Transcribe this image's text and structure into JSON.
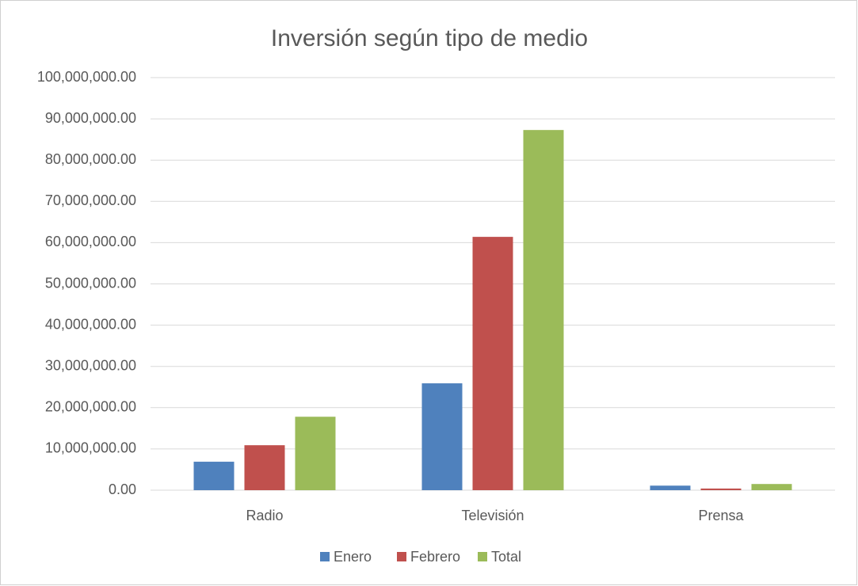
{
  "chart_data": {
    "type": "bar",
    "title": "Inversión según tipo de medio",
    "categories": [
      "Radio",
      "Televisión",
      "Prensa"
    ],
    "series": [
      {
        "name": "Enero",
        "color": "#4f81bd",
        "values": [
          6900000,
          25900000,
          1100000
        ]
      },
      {
        "name": "Febrero",
        "color": "#c0504d",
        "values": [
          10900000,
          61400000,
          400000
        ]
      },
      {
        "name": "Total",
        "color": "#9bbb59",
        "values": [
          17800000,
          87300000,
          1500000
        ]
      }
    ],
    "ylim": [
      0,
      100000000
    ],
    "yticks": [
      {
        "value": 0,
        "label": "0.00"
      },
      {
        "value": 10000000,
        "label": "10,000,000.00"
      },
      {
        "value": 20000000,
        "label": "20,000,000.00"
      },
      {
        "value": 30000000,
        "label": "30,000,000.00"
      },
      {
        "value": 40000000,
        "label": "40,000,000.00"
      },
      {
        "value": 50000000,
        "label": "50,000,000.00"
      },
      {
        "value": 60000000,
        "label": "60,000,000.00"
      },
      {
        "value": 70000000,
        "label": "70,000,000.00"
      },
      {
        "value": 80000000,
        "label": "80,000,000.00"
      },
      {
        "value": 90000000,
        "label": "90,000,000.00"
      },
      {
        "value": 100000000,
        "label": "100,000,000.00"
      }
    ],
    "grid": true,
    "legend": "bottom"
  }
}
